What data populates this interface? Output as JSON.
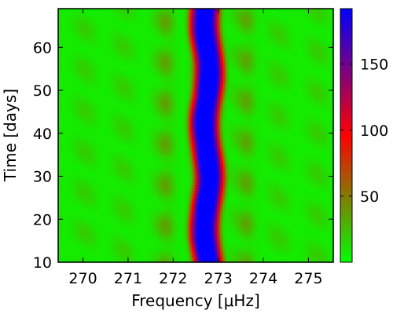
{
  "chart_data": {
    "type": "heatmap",
    "title": "",
    "xlabel": "Frequency [μHz]",
    "ylabel": "Time [days]",
    "xlim": [
      269.45,
      275.55
    ],
    "ylim": [
      10,
      69
    ],
    "x_ticks": [
      270,
      271,
      272,
      273,
      274,
      275
    ],
    "x_tick_labels": [
      "270",
      "271",
      "272",
      "273",
      "274",
      "275"
    ],
    "y_ticks": [
      10,
      20,
      30,
      40,
      50,
      60
    ],
    "y_tick_labels": [
      "10",
      "20",
      "30",
      "40",
      "50",
      "60"
    ],
    "colorbar": {
      "range": [
        0,
        192
      ],
      "ticks": [
        50,
        100,
        150
      ],
      "tick_labels": [
        "50",
        "100",
        "150"
      ],
      "colors": [
        "#00ff00",
        "#ff0000",
        "#0000ff"
      ]
    },
    "peak": {
      "center": 272.75,
      "width": 0.32,
      "amplitude": 187,
      "wobble_amplitude": 0.06,
      "wobble_period_days": 24
    },
    "background_level": 12,
    "ripple": {
      "amplitude": 12,
      "period_uHz": 0.86,
      "period_days": 9.5
    },
    "sidelobes": [
      {
        "center": 271.85,
        "amplitude": 18
      },
      {
        "center": 273.65,
        "amplitude": 18
      }
    ]
  }
}
